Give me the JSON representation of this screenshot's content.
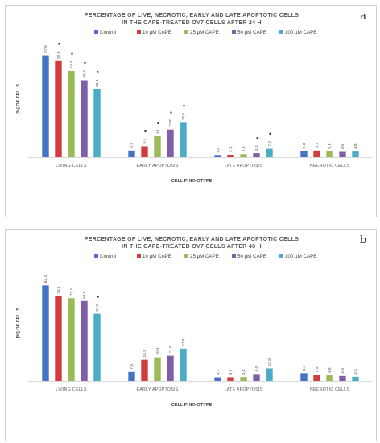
{
  "series_colors": [
    "#4472c4",
    "#d23c3c",
    "#9bbb59",
    "#7f5fa8",
    "#4bacc6"
  ],
  "chart_data": [
    {
      "type": "bar",
      "panel_letter": "a",
      "title_line1": "PERCENTAGE OF LIVE, NECROTIC, EARLY AND LATE APOPTOTIC CELLS",
      "title_line2": "IN THE CAPE-TREATED OV7 CELLS AFTER 24 H",
      "xlabel": "CELL PHENOTYPE",
      "ylabel": "[%] OF CELLS",
      "ylim": [
        0,
        100
      ],
      "legend_position": "top",
      "categories": [
        "LIVING CELLS",
        "EARLY APOPTOSIS",
        "LATE APOPTOSIS",
        "NECROTIC CELLS"
      ],
      "series": [
        {
          "name": "Control",
          "values": [
            87.8,
            5.7,
            1.2,
            5.3
          ],
          "labels": [
            "87,8",
            "5,7",
            "1,2",
            "5,3"
          ],
          "significant": [
            false,
            false,
            false,
            false
          ]
        },
        {
          "name": "10 µM CAPE",
          "values": [
            82.8,
            9.4,
            2.1,
            5.7
          ],
          "labels": [
            "82,8",
            "9,4",
            "2,1",
            "5,7"
          ],
          "significant": [
            true,
            true,
            false,
            false
          ]
        },
        {
          "name": "25 µM CAPE",
          "values": [
            74.3,
            18.0,
            2.6,
            5.1
          ],
          "labels": [
            "74,3",
            "18",
            "2,6",
            "5,1"
          ],
          "significant": [
            true,
            true,
            false,
            false
          ]
        },
        {
          "name": "50 µM CAPE",
          "values": [
            66.3,
            23.8,
            3.4,
            4.5
          ],
          "labels": [
            "66,3",
            "23,8",
            "3,4",
            "4,5"
          ],
          "significant": [
            true,
            true,
            true,
            false
          ]
        },
        {
          "name": "100 µM CAPE",
          "values": [
            58.4,
            29.6,
            7.2,
            4.8
          ],
          "labels": [
            "58,4",
            "29,6",
            "7,2",
            "4,8"
          ],
          "significant": [
            true,
            true,
            true,
            false
          ]
        }
      ]
    },
    {
      "type": "bar",
      "panel_letter": "b",
      "title_line1": "PERCENTAGE OF LIVE, NECROTIC, EARLY AND LATE APOPTOTIC CELLS",
      "title_line2": "IN THE CAPE-TREATED OV7 CELLS AFTER 48 H",
      "xlabel": "CELL PHENOTYPE",
      "ylabel": "[%] OF CELLS",
      "ylim": [
        0,
        100
      ],
      "legend_position": "top",
      "categories": [
        "LIVING CELLS",
        "EARLY APOPTOSIS",
        "LATE APOPTOSIS",
        "NECROTIC CELLS"
      ],
      "series": [
        {
          "name": "Control",
          "values": [
            82.4,
            7.8,
            3.1,
            6.7
          ],
          "labels": [
            "82,4",
            "7,8",
            "3,1",
            "6,7"
          ],
          "significant": [
            false,
            false,
            false,
            false
          ]
        },
        {
          "name": "10 µM CAPE",
          "values": [
            73.1,
            18.3,
            3.2,
            5.4
          ],
          "labels": [
            "73,1",
            "18,3",
            "3,2",
            "5,4"
          ],
          "significant": [
            false,
            false,
            false,
            false
          ]
        },
        {
          "name": "25 µM CAPE",
          "values": [
            71.4,
            20.4,
            3.4,
            4.8
          ],
          "labels": [
            "71,4",
            "20,4",
            "3,4",
            "4,8"
          ],
          "significant": [
            false,
            false,
            false,
            false
          ]
        },
        {
          "name": "50 µM CAPE",
          "values": [
            68.9,
            21.8,
            6.0,
            4.3
          ],
          "labels": [
            "68,9",
            "21,8",
            "6,0",
            "4,3"
          ],
          "significant": [
            false,
            false,
            false,
            false
          ]
        },
        {
          "name": "100 µM CAPE",
          "values": [
            57.9,
            27.9,
            10.8,
            3.6
          ],
          "labels": [
            "57,9",
            "27,9",
            "10,8",
            "3,6"
          ],
          "significant": [
            true,
            false,
            false,
            false
          ]
        }
      ]
    }
  ]
}
